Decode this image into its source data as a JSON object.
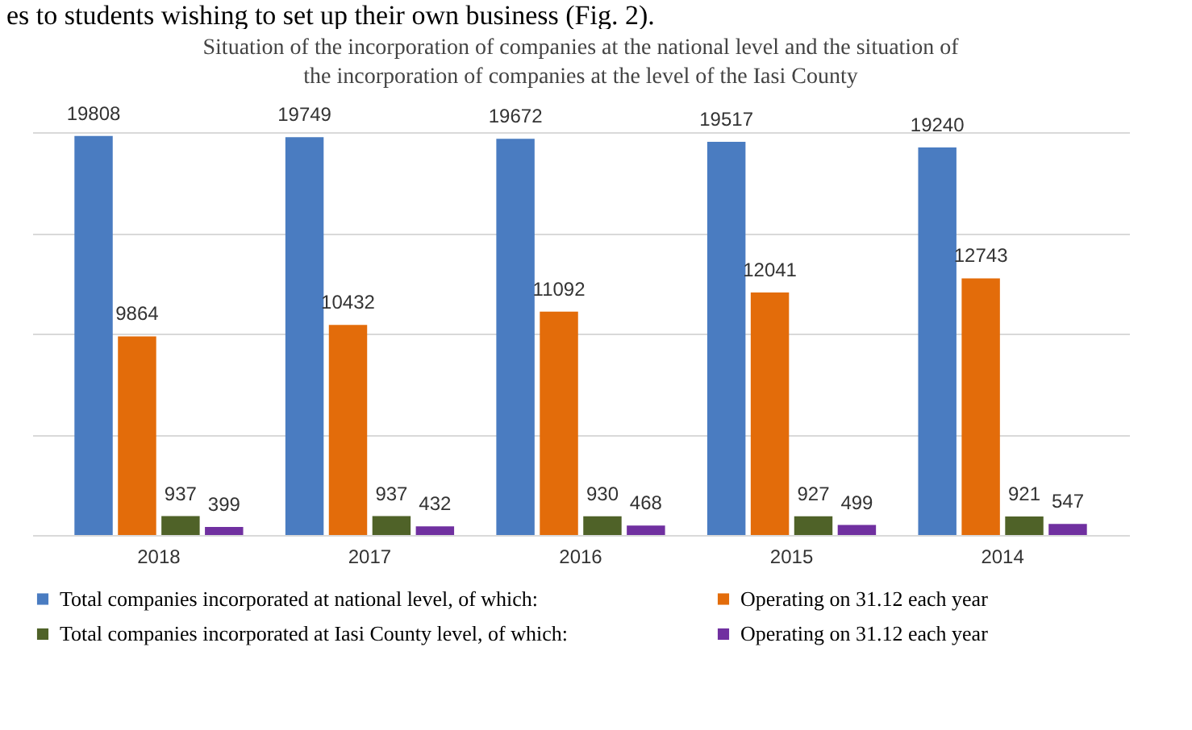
{
  "chart_data": {
    "type": "bar",
    "title": "Situation of the incorporation of companies at the national level and the situation of the incorporation of companies at the level of the Iasi County",
    "annotations": [
      "es to students wishing to set up their own business (Fig. 2)."
    ],
    "categories": [
      "2018",
      "2017",
      "2016",
      "2015",
      "2014"
    ],
    "series": [
      {
        "name": "Total companies incorporated at national level, of which:",
        "color": "#4a7cc1",
        "values": [
          19808,
          19749,
          19672,
          19517,
          19240
        ]
      },
      {
        "name": "Operating on 31.12 each year",
        "color": "#e36c0a",
        "values": [
          9864,
          10432,
          11092,
          12041,
          12743
        ]
      },
      {
        "name": "Total companies incorporated at Iasi County level, of which:",
        "color": "#4f6228",
        "values": [
          937,
          937,
          930,
          927,
          921
        ]
      },
      {
        "name": "Operating on 31.12 each year",
        "color": "#7030a0",
        "values": [
          399,
          432,
          468,
          499,
          547
        ]
      }
    ],
    "ylim": [
      0,
      20000
    ],
    "yticks": [
      {
        "value": 0,
        "label": null
      },
      {
        "value": 5000,
        "label": null
      },
      {
        "value": 10000,
        "label": null
      },
      {
        "value": 15000,
        "label": null
      },
      {
        "value": 20000,
        "label": null
      }
    ],
    "tick_labels": "x",
    "grid": "y",
    "data_labels": true,
    "legend": "bottom"
  }
}
